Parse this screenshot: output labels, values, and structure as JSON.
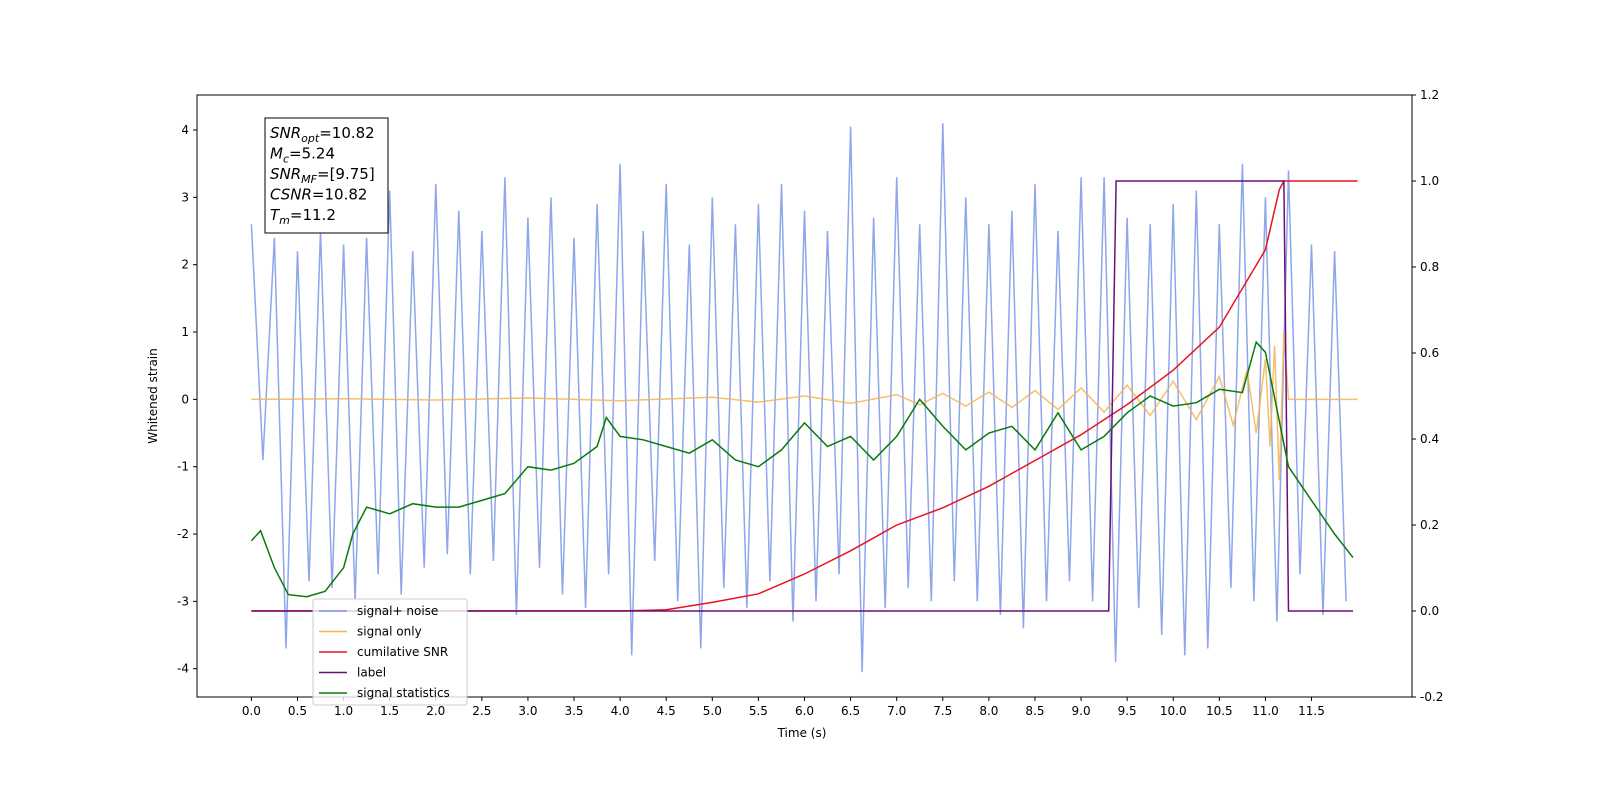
{
  "chart_data": {
    "type": "line",
    "xlabel": "Time (s)",
    "ylabel": "Whitened strain",
    "xlim": [
      -0.59,
      12.59
    ],
    "ylim": [
      -4.42,
      4.52
    ],
    "y2lim": [
      -0.2,
      1.2
    ],
    "xticks": [
      {
        "value": 0,
        "label": "0.0"
      },
      0.5,
      {
        "value": 1,
        "label": "1.0"
      },
      1.5,
      {
        "value": 2,
        "label": "2.0"
      },
      2.5,
      {
        "value": 3,
        "label": "3.0"
      },
      3.5,
      {
        "value": 4,
        "label": "4.0"
      },
      4.5,
      {
        "value": 5,
        "label": "5.0"
      },
      5.5,
      {
        "value": 6,
        "label": "6.0"
      },
      6.5,
      {
        "value": 7,
        "label": "7.0"
      },
      7.5,
      {
        "value": 8,
        "label": "8.0"
      },
      8.5,
      {
        "value": 9,
        "label": "9.0"
      },
      9.5,
      {
        "value": 10,
        "label": "10.0"
      },
      10.5,
      {
        "value": 11,
        "label": "11.0"
      },
      11.5
    ],
    "yticks": [
      -4,
      -3,
      -2,
      -1,
      0,
      1,
      2,
      3,
      4
    ],
    "y2ticks": [
      -0.2,
      {
        "value": 0,
        "label": "0.0"
      },
      0.2,
      0.4,
      0.6,
      0.8,
      {
        "value": 1,
        "label": "1.0"
      },
      1.2
    ],
    "annotation": [
      {
        "base": "SNR",
        "sub": "opt",
        "rest": "=10.82"
      },
      {
        "base": "M",
        "sub": "c",
        "rest": "=5.24"
      },
      {
        "base": "SNR",
        "sub": "MF",
        "rest": "=[9.75]"
      },
      {
        "base": "CSNR",
        "sub": "",
        "rest": "=10.82"
      },
      {
        "base": "T",
        "sub": "m",
        "rest": "=11.2"
      }
    ],
    "legend": "lower left",
    "series": [
      {
        "name": "signal+ noise",
        "color": "#7a96e8",
        "axis": "y",
        "x": [
          0,
          0.125,
          0.25,
          0.375,
          0.5,
          0.625,
          0.75,
          0.875,
          1,
          1.125,
          1.25,
          1.375,
          1.5,
          1.625,
          1.75,
          1.875,
          2,
          2.125,
          2.25,
          2.375,
          2.5,
          2.625,
          2.75,
          2.875,
          3,
          3.125,
          3.25,
          3.375,
          3.5,
          3.625,
          3.75,
          3.875,
          4,
          4.125,
          4.25,
          4.375,
          4.5,
          4.625,
          4.75,
          4.875,
          5,
          5.125,
          5.25,
          5.375,
          5.5,
          5.625,
          5.75,
          5.875,
          6,
          6.125,
          6.25,
          6.375,
          6.5,
          6.625,
          6.75,
          6.875,
          7,
          7.125,
          7.25,
          7.375,
          7.5,
          7.625,
          7.75,
          7.875,
          8,
          8.125,
          8.25,
          8.375,
          8.5,
          8.625,
          8.75,
          8.875,
          9,
          9.125,
          9.25,
          9.375,
          9.5,
          9.625,
          9.75,
          9.875,
          10,
          10.125,
          10.25,
          10.375,
          10.5,
          10.625,
          10.75,
          10.875,
          11,
          11.125,
          11.25,
          11.375,
          11.5,
          11.625,
          11.75,
          11.875
        ],
        "values": [
          2.6,
          -0.9,
          2.4,
          -3.7,
          2.2,
          -2.7,
          2.5,
          -2.8,
          2.3,
          -3.0,
          2.4,
          -2.6,
          3.1,
          -2.9,
          2.2,
          -2.5,
          3.2,
          -2.3,
          2.8,
          -2.6,
          2.5,
          -2.4,
          3.3,
          -3.2,
          2.7,
          -2.5,
          3.0,
          -2.9,
          2.4,
          -3.1,
          2.9,
          -2.6,
          3.5,
          -3.8,
          2.5,
          -2.4,
          3.2,
          -3.0,
          2.3,
          -3.7,
          3.0,
          -2.8,
          2.6,
          -3.1,
          2.9,
          -2.7,
          3.2,
          -3.3,
          2.8,
          -3.0,
          2.5,
          -2.6,
          4.05,
          -4.05,
          2.7,
          -3.1,
          3.3,
          -2.8,
          2.6,
          -3.0,
          4.1,
          -2.7,
          3.0,
          -3.0,
          2.6,
          -3.2,
          2.8,
          -3.4,
          3.2,
          -3.0,
          2.5,
          -2.7,
          3.3,
          -3.0,
          3.3,
          -3.9,
          2.7,
          -3.1,
          2.6,
          -3.5,
          2.9,
          -3.8,
          3.1,
          -3.7,
          2.6,
          -2.8,
          3.5,
          -3.0,
          3.0,
          -3.3,
          3.4,
          -2.6,
          2.3,
          -3.2,
          2.2,
          -3.0
        ]
      },
      {
        "name": "signal only",
        "color": "#f5b44f",
        "axis": "y",
        "x": [
          0,
          1,
          2,
          3,
          4,
          5,
          5.5,
          6,
          6.5,
          7,
          7.25,
          7.5,
          7.75,
          8,
          8.25,
          8.5,
          8.75,
          9,
          9.25,
          9.5,
          9.75,
          10,
          10.25,
          10.5,
          10.65,
          10.8,
          10.9,
          11,
          11.05,
          11.1,
          11.15,
          11.2,
          11.25,
          12
        ],
        "values": [
          0,
          0.01,
          -0.01,
          0.02,
          -0.02,
          0.03,
          -0.04,
          0.05,
          -0.06,
          0.07,
          -0.08,
          0.09,
          -0.1,
          0.11,
          -0.12,
          0.13,
          -0.15,
          0.17,
          -0.19,
          0.21,
          -0.24,
          0.27,
          -0.3,
          0.34,
          -0.38,
          0.44,
          -0.5,
          0.6,
          -0.7,
          0.8,
          -1.2,
          1.0,
          0,
          0
        ]
      },
      {
        "name": "cumilative SNR",
        "color": "#e8141e",
        "axis": "y2",
        "x": [
          0,
          4,
          4.5,
          5,
          5.5,
          6,
          6.5,
          7,
          7.5,
          8,
          8.5,
          9,
          9.5,
          10,
          10.5,
          11,
          11.15,
          11.2,
          12
        ],
        "values": [
          0,
          0,
          0.003,
          0.02,
          0.04,
          0.086,
          0.14,
          0.2,
          0.24,
          0.29,
          0.35,
          0.41,
          0.48,
          0.56,
          0.66,
          0.84,
          0.98,
          1.0,
          1.0
        ]
      },
      {
        "name": "label",
        "color": "#6a0f7a",
        "axis": "y2",
        "x": [
          0,
          9.3,
          9.38,
          11.2,
          11.25,
          11.95
        ],
        "values": [
          0,
          0,
          1,
          1,
          0,
          0
        ]
      },
      {
        "name": "signal statistics",
        "color": "#0a7a0a",
        "axis": "y",
        "x": [
          0,
          0.1,
          0.25,
          0.4,
          0.6,
          0.8,
          1.0,
          1.1,
          1.25,
          1.5,
          1.75,
          2.0,
          2.25,
          2.5,
          2.75,
          3.0,
          3.25,
          3.5,
          3.75,
          3.85,
          4.0,
          4.25,
          4.5,
          4.75,
          5.0,
          5.25,
          5.5,
          5.75,
          6.0,
          6.25,
          6.5,
          6.75,
          7.0,
          7.25,
          7.5,
          7.75,
          8.0,
          8.25,
          8.5,
          8.75,
          9.0,
          9.25,
          9.5,
          9.75,
          10.0,
          10.25,
          10.5,
          10.75,
          10.9,
          11.0,
          11.25,
          11.5,
          11.75,
          11.95
        ],
        "values": [
          -2.1,
          -1.95,
          -2.5,
          -2.9,
          -2.93,
          -2.85,
          -2.5,
          -2.0,
          -1.6,
          -1.7,
          -1.55,
          -1.6,
          -1.6,
          -1.5,
          -1.4,
          -1.0,
          -1.05,
          -0.95,
          -0.7,
          -0.27,
          -0.55,
          -0.6,
          -0.7,
          -0.8,
          -0.6,
          -0.9,
          -1.0,
          -0.75,
          -0.35,
          -0.7,
          -0.55,
          -0.9,
          -0.55,
          0.0,
          -0.4,
          -0.75,
          -0.5,
          -0.4,
          -0.75,
          -0.2,
          -0.75,
          -0.55,
          -0.2,
          0.05,
          -0.1,
          -0.05,
          0.15,
          0.1,
          0.85,
          0.7,
          -1.0,
          -1.5,
          -2.0,
          -2.35
        ]
      }
    ]
  }
}
